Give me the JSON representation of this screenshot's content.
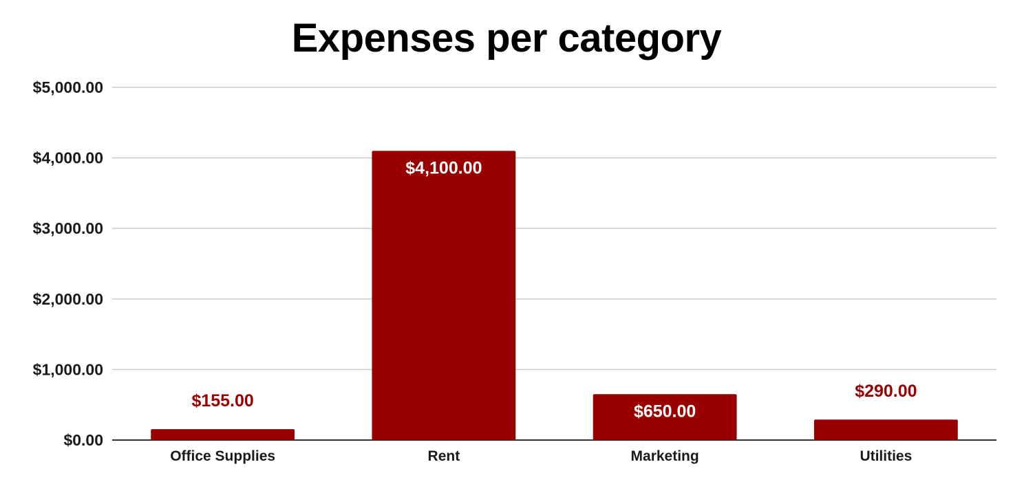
{
  "chart_data": {
    "type": "bar",
    "title": "Expenses per category",
    "categories": [
      "Office Supplies",
      "Rent",
      "Marketing",
      "Utilities"
    ],
    "values": [
      155,
      4100,
      650,
      290
    ],
    "data_labels": [
      "$155.00",
      "$4,100.00",
      "$650.00",
      "$290.00"
    ],
    "xlabel": "",
    "ylabel": "",
    "ylim": [
      0,
      5000
    ],
    "yticks": [
      0,
      1000,
      2000,
      3000,
      4000,
      5000
    ],
    "ytick_labels": [
      "$0.00",
      "$1,000.00",
      "$2,000.00",
      "$3,000.00",
      "$4,000.00",
      "$5,000.00"
    ],
    "grid": true,
    "legend": "none",
    "colors": {
      "bar": "#990000",
      "label_inside": "#ffffff",
      "label_outside": "#990000",
      "grid": "#cccccc",
      "axis": "#333333"
    }
  }
}
